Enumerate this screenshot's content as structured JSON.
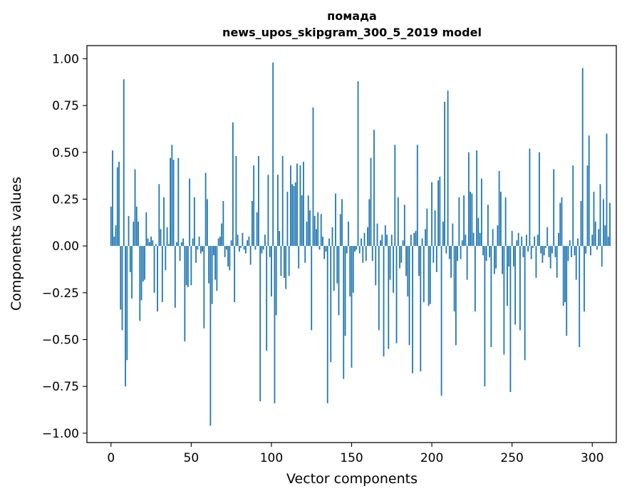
{
  "chart_data": {
    "type": "bar",
    "title": "помада",
    "subtitle": "news_upos_skipgram_300_5_2019 model",
    "xlabel": "Vector components",
    "ylabel": "Components values",
    "xlim": [
      -15,
      315
    ],
    "ylim": [
      -1.05,
      1.07
    ],
    "xticks": [
      0,
      50,
      100,
      150,
      200,
      250,
      300
    ],
    "yticks": [
      -1.0,
      -0.75,
      -0.5,
      -0.25,
      0.0,
      0.25,
      0.5,
      0.75,
      1.0
    ],
    "ytick_labels": [
      "−1.00",
      "−0.75",
      "−0.50",
      "−0.25",
      "0.00",
      "0.25",
      "0.50",
      "0.75",
      "1.00"
    ],
    "xtick_labels": [
      "0",
      "50",
      "100",
      "150",
      "200",
      "250",
      "300"
    ],
    "bar_color": "#1f77b4",
    "grid": false,
    "values": [
      0.21,
      0.51,
      0.05,
      0.11,
      0.42,
      0.45,
      -0.34,
      -0.45,
      0.89,
      -0.75,
      -0.61,
      0.16,
      -0.14,
      -0.28,
      0.13,
      0.41,
      0.21,
      0.13,
      -0.4,
      -0.29,
      -0.19,
      -0.18,
      0.18,
      0.04,
      0.02,
      0.05,
      0.03,
      -0.25,
      0.01,
      -0.35,
      0.33,
      0.09,
      -0.3,
      0.26,
      -0.13,
      0.1,
      0.01,
      0.47,
      0.54,
      0.46,
      -0.33,
      0.02,
      0.47,
      -0.08,
      0.02,
      0.04,
      -0.51,
      -0.21,
      -0.22,
      0.36,
      -0.21,
      0.04,
      0.26,
      -0.09,
      -0.02,
      0.05,
      -0.04,
      -0.03,
      -0.44,
      0.39,
      0.25,
      -0.2,
      -0.96,
      -0.31,
      -0.05,
      -0.18,
      -0.24,
      0.04,
      0.05,
      0.12,
      0.24,
      -0.06,
      -0.02,
      -0.11,
      -0.13,
      0.03,
      0.66,
      -0.3,
      0.48,
      0.06,
      -0.03,
      -0.01,
      0.07,
      -0.02,
      -0.04,
      0.03,
      0.05,
      -0.1,
      0.24,
      0.43,
      -0.02,
      0.18,
      0.48,
      -0.83,
      -0.04,
      -0.02,
      0.06,
      -0.56,
      0.38,
      -0.06,
      -0.27,
      0.98,
      -0.84,
      -0.37,
      0.38,
      0.08,
      -0.16,
      0.48,
      -0.17,
      -0.23,
      0.29,
      -0.16,
      0.43,
      0.33,
      0.32,
      0.34,
      0.44,
      -0.12,
      0.43,
      0.27,
      0.45,
      -0.09,
      0.13,
      0.27,
      0.19,
      -0.45,
      0.74,
      0.16,
      0.09,
      0.18,
      -0.02,
      0.17,
      0.05,
      -0.07,
      -0.03,
      -0.84,
      0.04,
      -0.62,
      0.1,
      -0.24,
      0.28,
      -0.2,
      -0.37,
      0.17,
      0.25,
      -0.71,
      -0.48,
      -0.04,
      0.13,
      -0.27,
      -0.65,
      -0.25,
      -0.03,
      -0.02,
      0.88,
      -0.04,
      0.04,
      -0.09,
      0.07,
      -0.08,
      0.1,
      0.25,
      0.47,
      -0.08,
      0.62,
      -0.21,
      0.12,
      -0.45,
      0.03,
      0.06,
      -0.59,
      0.11,
      0.06,
      -0.55,
      -0.18,
      0.06,
      -0.25,
      0.54,
      -0.52,
      0.26,
      -0.12,
      -0.09,
      0.03,
      0.22,
      -0.16,
      -0.27,
      -0.53,
      0.06,
      -0.68,
      0.07,
      0.08,
      0.54,
      -0.16,
      -0.67,
      0.04,
      -0.3,
      0.09,
      0.2,
      -0.32,
      -0.31,
      0.34,
      -0.09,
      0.19,
      -0.14,
      0.35,
      0.37,
      -0.8,
      0.13,
      0.77,
      -0.04,
      0.83,
      -0.07,
      -0.17,
      0.12,
      -0.35,
      -0.53,
      -0.08,
      0.26,
      -0.07,
      0.03,
      0.27,
      0.06,
      -0.18,
      0.5,
      0.29,
      0.28,
      0.07,
      -0.35,
      0.51,
      0.15,
      0.07,
      0.36,
      -0.05,
      -0.75,
      -0.08,
      0.22,
      -0.06,
      -0.54,
      0.09,
      -0.15,
      -0.12,
      0.11,
      0.4,
      0.29,
      -0.15,
      -0.58,
      0.26,
      -0.32,
      -0.11,
      -0.78,
      0.08,
      -0.11,
      -0.42,
      0.03,
      0.07,
      -0.45,
      0.05,
      -0.06,
      -0.61,
      0.06,
      -0.03,
      0.52,
      -0.07,
      -0.01,
      0.05,
      -0.17,
      0.06,
      0.5,
      -0.04,
      -0.09,
      -0.05,
      -0.01,
      0.1,
      -0.06,
      -0.12,
      -0.04,
      0.41,
      -0.06,
      -0.17,
      0.07,
      0.23,
      0.26,
      -0.32,
      -0.3,
      -0.48,
      -0.08,
      0.03,
      -0.06,
      0.43,
      -0.05,
      -0.18,
      0.04,
      -0.54,
      0.24,
      0.95,
      -0.35,
      -0.04,
      0.43,
      0.59,
      -0.05,
      0.06,
      0.29,
      0.13,
      -0.02,
      0.09,
      0.33,
      -0.11,
      0.25,
      0.11,
      0.6,
      0.05,
      0.23
    ]
  }
}
